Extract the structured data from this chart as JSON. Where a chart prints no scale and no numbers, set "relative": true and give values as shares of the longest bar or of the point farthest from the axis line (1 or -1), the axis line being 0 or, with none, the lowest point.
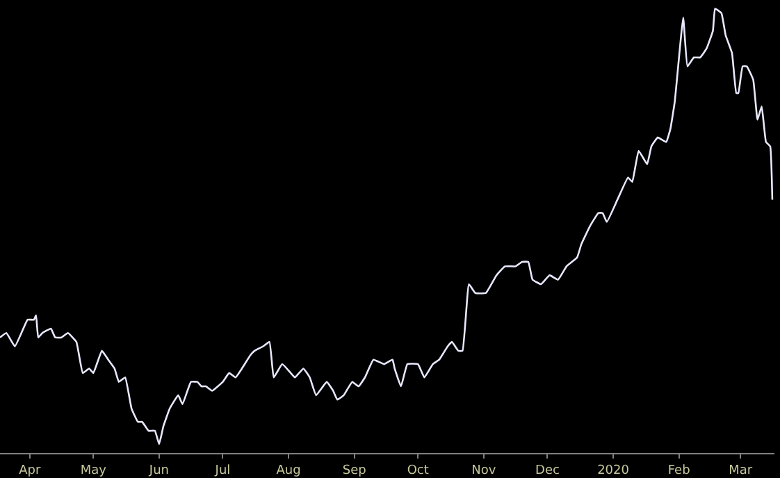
{
  "chart_data": {
    "type": "line",
    "relative": true,
    "grid": false,
    "marker": "none",
    "line_style": "solid",
    "xlim": [
      "2019-03-18",
      "2020-03-17"
    ],
    "xticks": [
      {
        "value": "2019-04-01",
        "label": "Apr"
      },
      {
        "value": "2019-05-01",
        "label": "May"
      },
      {
        "value": "2019-06-01",
        "label": "Jun"
      },
      {
        "value": "2019-07-01",
        "label": "Jul"
      },
      {
        "value": "2019-08-01",
        "label": "Aug"
      },
      {
        "value": "2019-09-01",
        "label": "Sep"
      },
      {
        "value": "2019-10-01",
        "label": "Oct"
      },
      {
        "value": "2019-11-01",
        "label": "Nov"
      },
      {
        "value": "2019-12-01",
        "label": "Dec"
      },
      {
        "value": "2020-01-01",
        "label": "2020"
      },
      {
        "value": "2020-02-01",
        "label": "Feb"
      },
      {
        "value": "2020-03-01",
        "label": "Mar"
      }
    ],
    "x": [
      "2019-03-18",
      "2019-03-21",
      "2019-03-25",
      "2019-03-29",
      "2019-03-31",
      "2019-04-03",
      "2019-04-04",
      "2019-04-05",
      "2019-04-07",
      "2019-04-11",
      "2019-04-13",
      "2019-04-16",
      "2019-04-19",
      "2019-04-23",
      "2019-04-26",
      "2019-04-29",
      "2019-05-01",
      "2019-05-05",
      "2019-05-08",
      "2019-05-11",
      "2019-05-13",
      "2019-05-16",
      "2019-05-19",
      "2019-05-22",
      "2019-05-24",
      "2019-05-27",
      "2019-05-30",
      "2019-06-01",
      "2019-06-03",
      "2019-06-06",
      "2019-06-10",
      "2019-06-12",
      "2019-06-16",
      "2019-06-19",
      "2019-06-21",
      "2019-06-23",
      "2019-06-26",
      "2019-07-01",
      "2019-07-04",
      "2019-07-07",
      "2019-07-10",
      "2019-07-14",
      "2019-07-16",
      "2019-07-20",
      "2019-07-23",
      "2019-07-25",
      "2019-07-29",
      "2019-08-02",
      "2019-08-04",
      "2019-08-08",
      "2019-08-11",
      "2019-08-14",
      "2019-08-19",
      "2019-08-22",
      "2019-08-24",
      "2019-08-27",
      "2019-08-31",
      "2019-09-03",
      "2019-09-06",
      "2019-09-10",
      "2019-09-15",
      "2019-09-19",
      "2019-09-20",
      "2019-09-23",
      "2019-09-26",
      "2019-10-01",
      "2019-10-04",
      "2019-10-08",
      "2019-10-11",
      "2019-10-15",
      "2019-10-17",
      "2019-10-20",
      "2019-10-22",
      "2019-10-25",
      "2019-10-28",
      "2019-11-02",
      "2019-11-07",
      "2019-11-11",
      "2019-11-16",
      "2019-11-19",
      "2019-11-22",
      "2019-11-24",
      "2019-11-28",
      "2019-12-02",
      "2019-12-06",
      "2019-12-10",
      "2019-12-15",
      "2019-12-17",
      "2019-12-21",
      "2019-12-25",
      "2019-12-27",
      "2019-12-29",
      "2020-01-03",
      "2020-01-08",
      "2020-01-10",
      "2020-01-13",
      "2020-01-17",
      "2020-01-19",
      "2020-01-22",
      "2020-01-26",
      "2020-01-28",
      "2020-01-30",
      "2020-02-03",
      "2020-02-05",
      "2020-02-08",
      "2020-02-11",
      "2020-02-14",
      "2020-02-17",
      "2020-02-18",
      "2020-02-21",
      "2020-02-23",
      "2020-02-26",
      "2020-02-28",
      "2020-02-29",
      "2020-03-02",
      "2020-03-04",
      "2020-03-07",
      "2020-03-09",
      "2020-03-11",
      "2020-03-13",
      "2020-03-15",
      "2020-03-16"
    ],
    "series": [
      {
        "color": "#e8e8ff",
        "values": [
          0.26,
          0.27,
          0.24,
          0.28,
          0.3,
          0.3,
          0.31,
          0.26,
          0.27,
          0.28,
          0.26,
          0.26,
          0.27,
          0.25,
          0.18,
          0.19,
          0.18,
          0.23,
          0.21,
          0.19,
          0.16,
          0.17,
          0.1,
          0.07,
          0.07,
          0.05,
          0.05,
          0.02,
          0.06,
          0.1,
          0.13,
          0.11,
          0.16,
          0.16,
          0.15,
          0.15,
          0.14,
          0.16,
          0.18,
          0.17,
          0.19,
          0.22,
          0.23,
          0.24,
          0.25,
          0.17,
          0.2,
          0.18,
          0.17,
          0.19,
          0.17,
          0.13,
          0.16,
          0.14,
          0.12,
          0.13,
          0.16,
          0.15,
          0.17,
          0.21,
          0.2,
          0.21,
          0.19,
          0.15,
          0.2,
          0.2,
          0.17,
          0.2,
          0.21,
          0.24,
          0.25,
          0.23,
          0.23,
          0.38,
          0.36,
          0.36,
          0.4,
          0.42,
          0.42,
          0.43,
          0.43,
          0.39,
          0.38,
          0.4,
          0.39,
          0.42,
          0.44,
          0.47,
          0.51,
          0.54,
          0.54,
          0.52,
          0.57,
          0.62,
          0.61,
          0.68,
          0.65,
          0.69,
          0.71,
          0.7,
          0.73,
          0.79,
          0.98,
          0.87,
          0.89,
          0.89,
          0.91,
          0.95,
          1.0,
          0.99,
          0.94,
          0.9,
          0.81,
          0.81,
          0.87,
          0.87,
          0.84,
          0.75,
          0.78,
          0.7,
          0.69,
          0.57
        ]
      }
    ]
  }
}
